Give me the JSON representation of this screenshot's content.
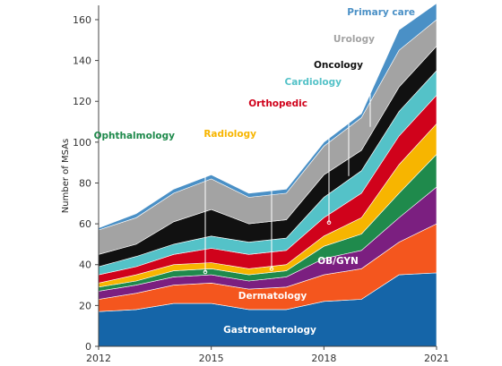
{
  "chart_data": {
    "type": "area",
    "stacked": true,
    "ylabel": "Number of MSAs",
    "xlabel": "",
    "ylim": [
      0,
      167
    ],
    "xlim": [
      2012,
      2021
    ],
    "x": [
      2012,
      2013,
      2014,
      2015,
      2016,
      2017,
      2018,
      2019,
      2020,
      2021
    ],
    "x_ticks": [
      2012,
      2015,
      2018,
      2021
    ],
    "y_ticks": [
      0,
      20,
      40,
      60,
      80,
      100,
      120,
      140,
      160
    ],
    "grid": false,
    "series": [
      {
        "name": "Gastroenterology",
        "color": "#1565a8",
        "label_color": "#ffffff",
        "values": [
          17,
          18,
          21,
          21,
          18,
          18,
          22,
          23,
          35,
          36
        ]
      },
      {
        "name": "Dermatology",
        "color": "#f4561e",
        "label_color": "#ffffff",
        "values": [
          6,
          8,
          9,
          10,
          10,
          11,
          13,
          15,
          16,
          24
        ]
      },
      {
        "name": "OB/GYN",
        "color": "#7b1f80",
        "label_color": "#ffffff",
        "values": [
          4,
          4,
          4,
          4,
          4,
          5,
          8,
          9,
          12,
          18
        ]
      },
      {
        "name": "Ophthalmology",
        "color": "#1f8a4c",
        "label_color": "#1f8a4c",
        "values": [
          2,
          2,
          3,
          3,
          3,
          3,
          6,
          8,
          12,
          16
        ]
      },
      {
        "name": "Radiology",
        "color": "#f7b500",
        "label_color": "#f7b500",
        "values": [
          2,
          3,
          3,
          3,
          3,
          3,
          5,
          8,
          14,
          15
        ]
      },
      {
        "name": "Orthopedic",
        "color": "#d0021b",
        "label_color": "#d0021b",
        "values": [
          4,
          4,
          5,
          7,
          7,
          7,
          9,
          12,
          14,
          14
        ]
      },
      {
        "name": "Cardiology",
        "color": "#54c2c8",
        "label_color": "#54c2c8",
        "values": [
          4,
          5,
          5,
          6,
          6,
          6,
          10,
          11,
          12,
          12
        ]
      },
      {
        "name": "Oncology",
        "color": "#111111",
        "label_color": "#111111",
        "values": [
          6,
          6,
          11,
          13,
          9,
          9,
          11,
          10,
          12,
          12
        ]
      },
      {
        "name": "Urology",
        "color": "#a3a3a3",
        "label_color": "#a3a3a3",
        "values": [
          12,
          13,
          14,
          15,
          13,
          13,
          14,
          16,
          18,
          13
        ]
      },
      {
        "name": "Primary care",
        "color": "#4a90c6",
        "label_color": "#4a90c6",
        "values": [
          1,
          2,
          2,
          2,
          2,
          2,
          2,
          2,
          10,
          8
        ]
      }
    ],
    "annotations": [
      {
        "series": "Primary care",
        "text": "Primary care"
      },
      {
        "series": "Urology",
        "text": "Urology"
      },
      {
        "series": "Oncology",
        "text": "Oncology"
      },
      {
        "series": "Cardiology",
        "text": "Cardiology"
      },
      {
        "series": "Orthopedic",
        "text": "Orthopedic"
      },
      {
        "series": "Ophthalmology",
        "text": "Ophthalmology"
      },
      {
        "series": "Radiology",
        "text": "Radiology"
      },
      {
        "series": "OB/GYN",
        "text": "OB/GYN"
      },
      {
        "series": "Dermatology",
        "text": "Dermatology"
      },
      {
        "series": "Gastroenterology",
        "text": "Gastroenterology"
      }
    ]
  }
}
